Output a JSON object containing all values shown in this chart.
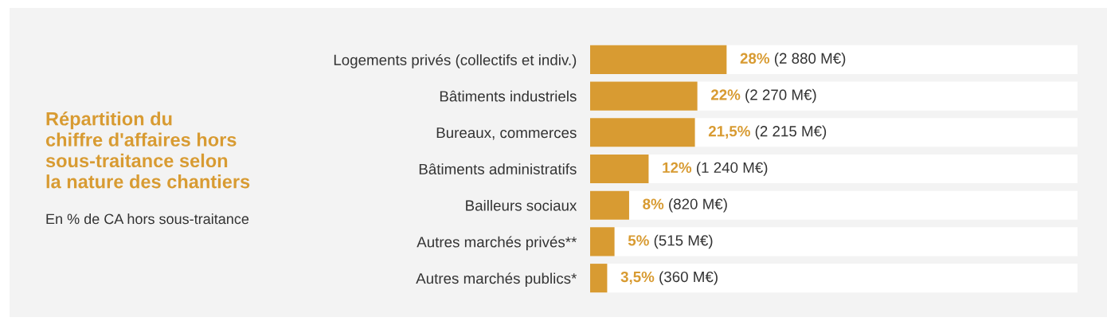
{
  "chart_data": {
    "type": "bar",
    "orientation": "horizontal",
    "title": "Répartition du\nchiffre d'affaires hors\nsous-traitance selon\nla nature des chantiers",
    "subtitle": "En % de CA hors sous-traitance",
    "categories": [
      "Logements privés (collectifs et indiv.)",
      "Bâtiments industriels",
      "Bureaux, commerces",
      "Bâtiments administratifs",
      "Bailleurs sociaux",
      "Autres marchés privés**",
      "Autres marchés publics*"
    ],
    "values": [
      28,
      22,
      21.5,
      12,
      8,
      5,
      3.5
    ],
    "value_labels": [
      "28% (2 880 M€)",
      "22% (2 270 M€)",
      "21,5% (2 215 M€)",
      "12% (1 240 M€)",
      "8% (820 M€)",
      "5% (515 M€)",
      "3,5% (360 M€)"
    ],
    "color": "#d89b32",
    "xlim": [
      0,
      100
    ],
    "tick_labels": "y",
    "grid": false,
    "legend": false
  }
}
